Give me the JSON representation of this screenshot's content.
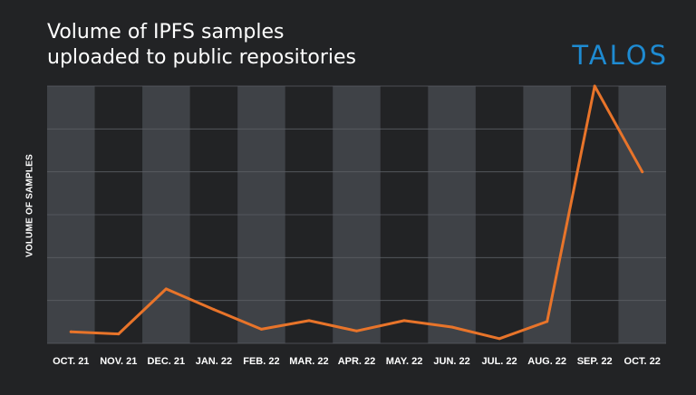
{
  "header": {
    "title_line1": "Volume of IPFS samples",
    "title_line2": "uploaded to public repositories",
    "logo": "TALOS"
  },
  "colors": {
    "background": "#222325",
    "band": "#3f4247",
    "line": "#e8742a",
    "logo": "#1e8bd2",
    "text": "#ffffff"
  },
  "chart_data": {
    "type": "line",
    "title": "Volume of IPFS samples uploaded to public repositories",
    "xlabel": "",
    "ylabel": "VOLUME OF SAMPLES",
    "categories": [
      "OCT. 21",
      "NOV. 21",
      "DEC. 21",
      "JAN. 22",
      "FEB. 22",
      "MAR. 22",
      "APR. 22",
      "MAY. 22",
      "JUN. 22",
      "JUL. 22",
      "AUG. 22",
      "SEP. 22",
      "OCT. 22"
    ],
    "values": [
      0.27,
      0.22,
      1.27,
      0.79,
      0.33,
      0.53,
      0.29,
      0.53,
      0.38,
      0.11,
      0.51,
      6.0,
      4.0
    ],
    "ylim": [
      0,
      6
    ],
    "y_tick_labels_shown": false,
    "grid": "horizontal",
    "alternating_bands": true,
    "legend": "none"
  }
}
